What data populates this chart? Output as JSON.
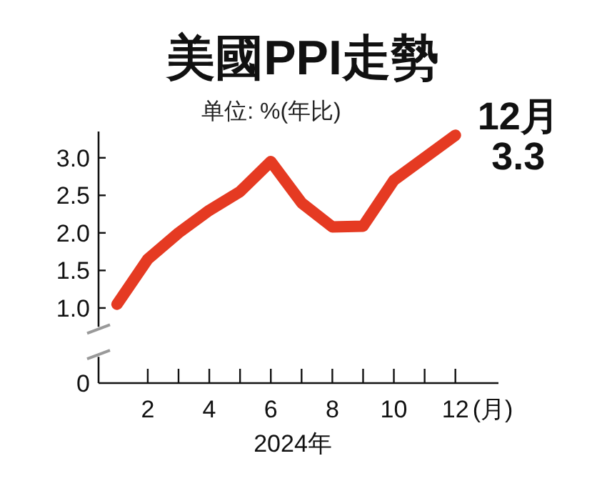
{
  "chart_data": {
    "type": "line",
    "title": "美國PPI走勢",
    "subtitle": "单位: %(年比)",
    "xlabel": "2024年",
    "annotations": [
      {
        "text": "12月\n3.3",
        "x": 12,
        "y": 3.3
      },
      "(月)"
    ],
    "x": [
      1,
      2,
      3,
      4,
      5,
      6,
      7,
      8,
      9,
      10,
      11,
      12
    ],
    "series": [
      {
        "color": "#e53a22",
        "values": [
          1.05,
          1.65,
          2.0,
          2.3,
          2.55,
          2.95,
          2.4,
          2.08,
          2.09,
          2.7,
          3.0,
          3.3
        ]
      }
    ],
    "xlim": [
      0.4,
      13.4
    ],
    "xticks": [
      {
        "value": 2,
        "label": "2"
      },
      {
        "value": 3,
        "label": null
      },
      {
        "value": 4,
        "label": "4"
      },
      {
        "value": 5,
        "label": null
      },
      {
        "value": 6,
        "label": "6"
      },
      {
        "value": 7,
        "label": null
      },
      {
        "value": 8,
        "label": "8"
      },
      {
        "value": 9,
        "label": null
      },
      {
        "value": 10,
        "label": "10"
      },
      {
        "value": 11,
        "label": null
      },
      {
        "value": 12,
        "label": "12"
      }
    ],
    "ylim": [
      0,
      3.35
    ],
    "yticks": [
      {
        "value": 0,
        "label": "0"
      },
      {
        "value": 1,
        "label": "1.0"
      },
      {
        "value": 1.5,
        "label": "1.5"
      },
      {
        "value": 2,
        "label": "2.0"
      },
      {
        "value": 2.5,
        "label": "2.5"
      },
      {
        "value": 3,
        "label": "3.0"
      }
    ],
    "marker": "none",
    "line_style": "solid"
  }
}
